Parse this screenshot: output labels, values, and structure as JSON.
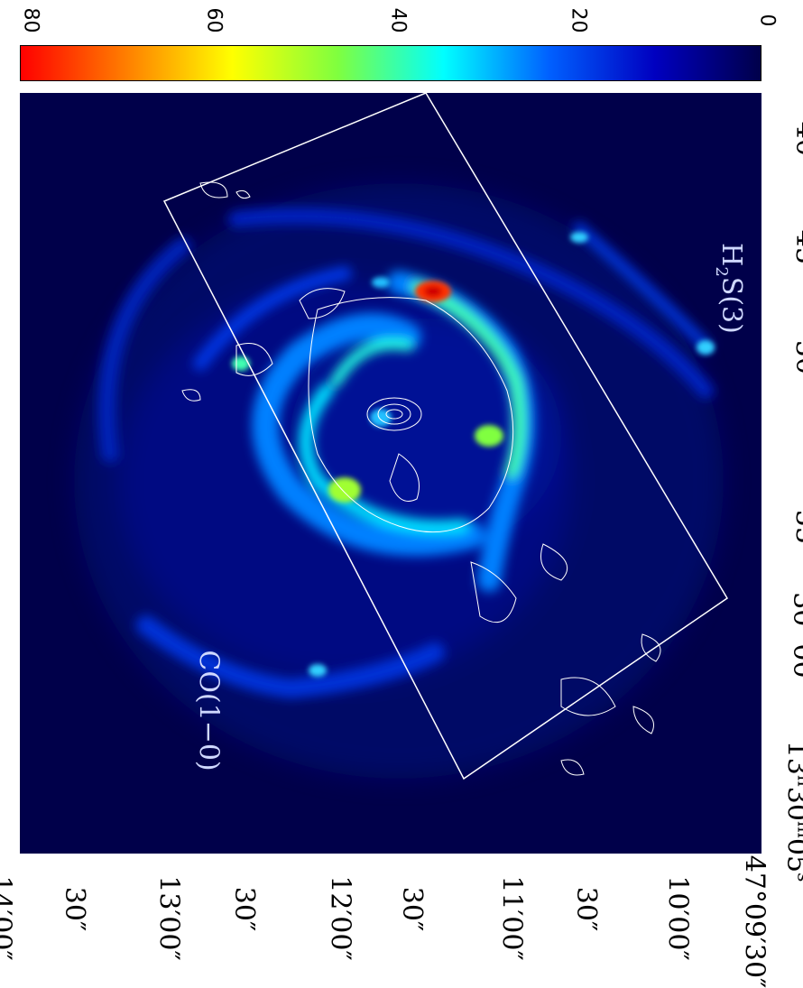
{
  "colorbar": {
    "tick_labels": [
      "80",
      "60",
      "40",
      "20",
      "0"
    ],
    "colors": [
      "#ff0000",
      "#ff7f00",
      "#ffff00",
      "#7fff3f",
      "#00ffff",
      "#0060ff",
      "#0000c0",
      "#00004a"
    ]
  },
  "map": {
    "labels": {
      "left": "CO(1−0)",
      "right_main": "H",
      "right_sub": "2",
      "right_rest": "S(3)"
    }
  },
  "axes": {
    "ra_ticks": [
      {
        "h": "13",
        "hs": "h",
        "m": "30",
        "ms": "m",
        "s": "05",
        "ss": "s"
      },
      {
        "m": "30",
        "ms": "m",
        "s": "00",
        "ss": "s"
      },
      {
        "s": "55",
        "ss": "s"
      },
      {
        "s": "50",
        "ss": "s"
      },
      {
        "s": "45",
        "ss": "s"
      },
      {
        "s": "40",
        "ss": "s"
      }
    ],
    "dec_ticks": [
      "47°09′30″",
      "10′00″",
      "30″",
      "11′00″",
      "30″",
      "12′00″",
      "30″",
      "13′00″",
      "30″",
      "14′00″"
    ]
  }
}
